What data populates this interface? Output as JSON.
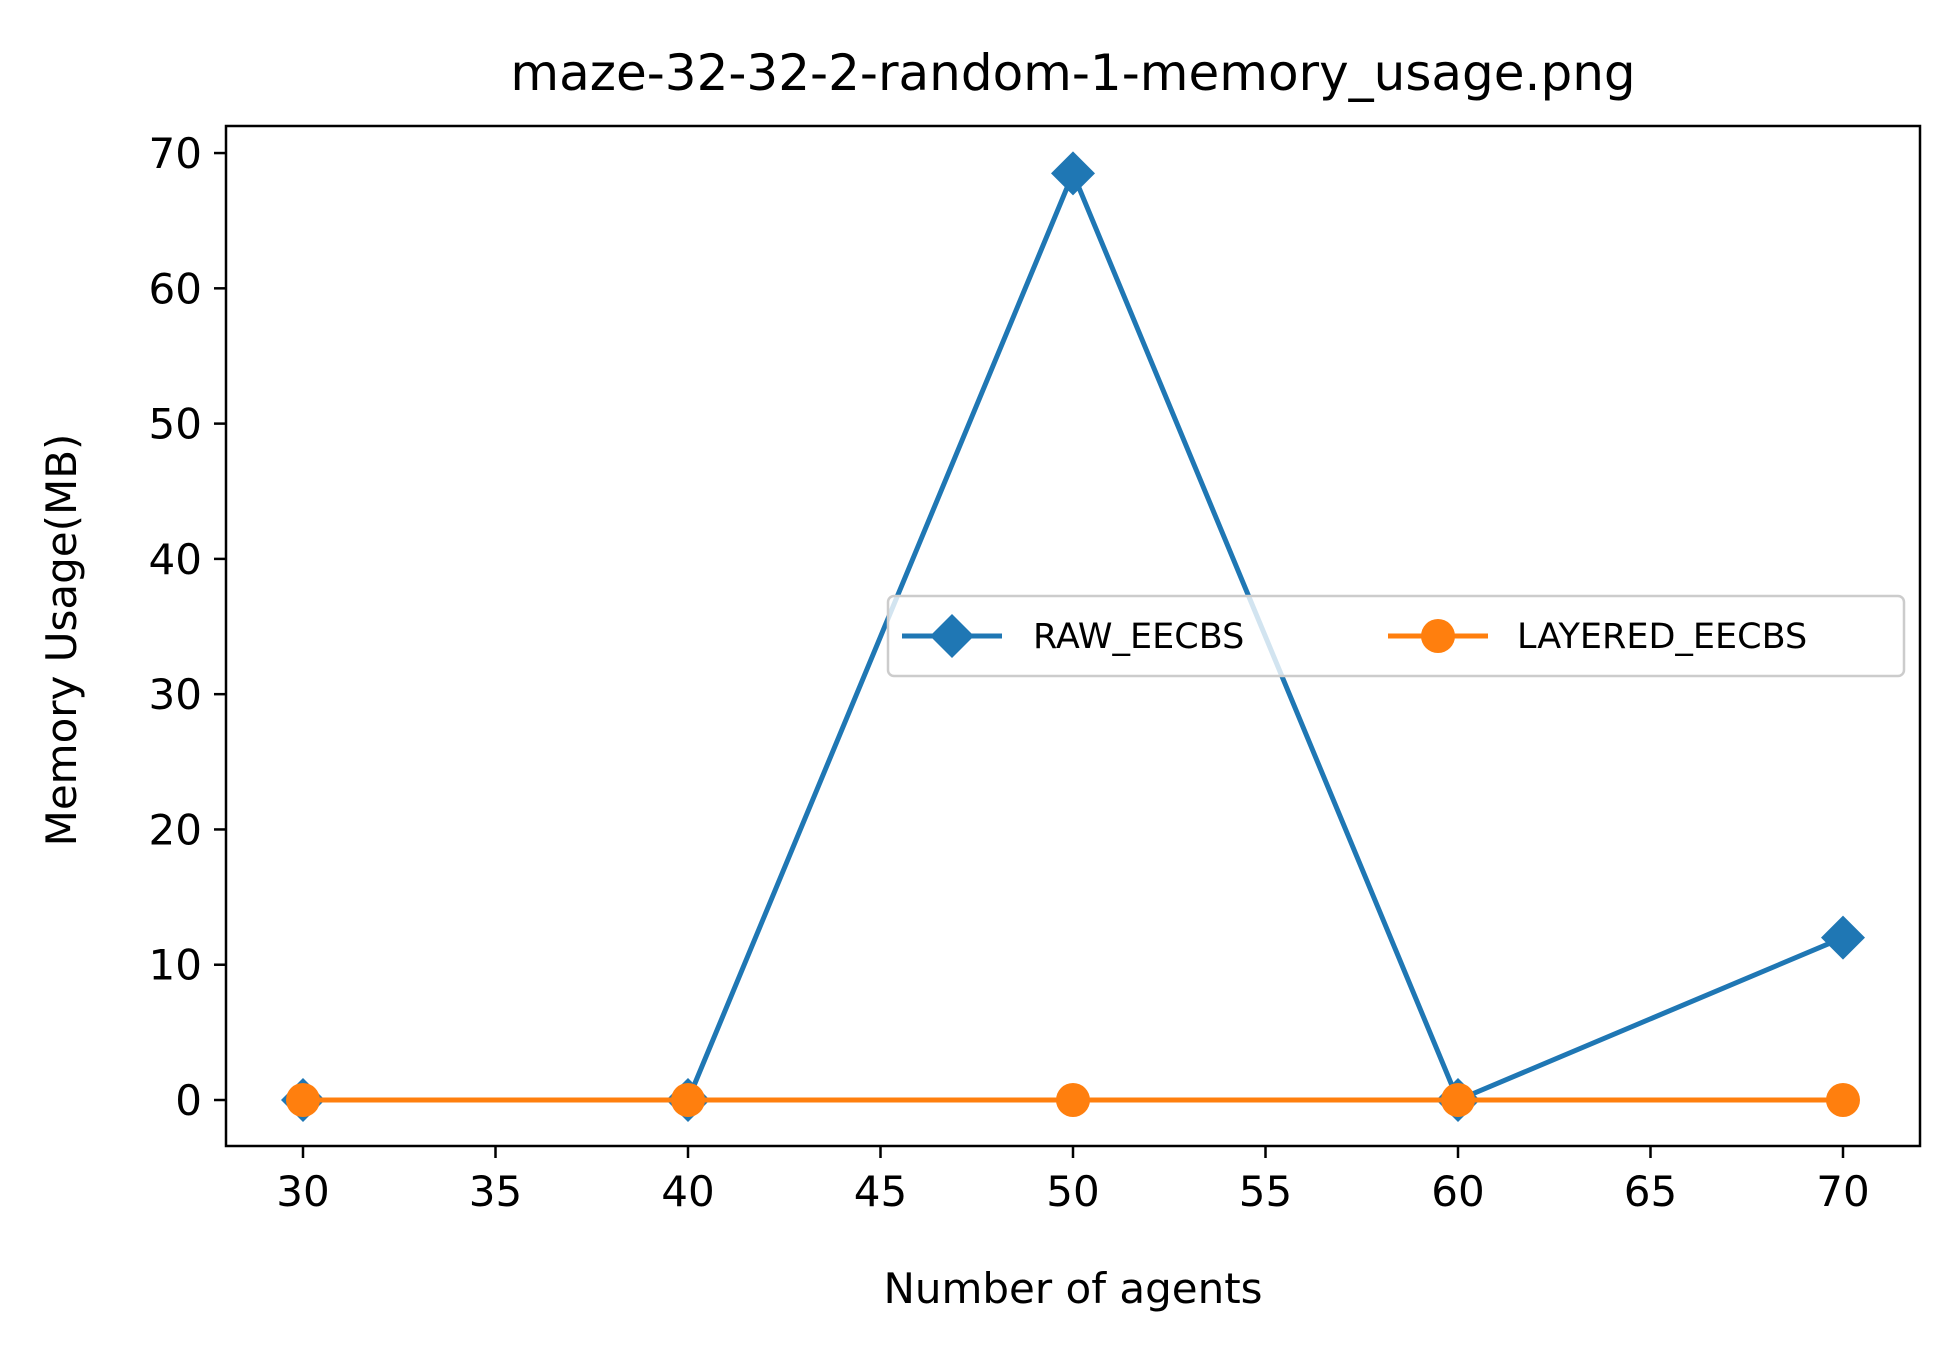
{
  "chart_data": {
    "type": "line",
    "title": "maze-32-32-2-random-1-memory_usage.png",
    "xlabel": "Number of agents",
    "ylabel": "Memory Usage(MB)",
    "x": [
      30,
      40,
      50,
      60,
      70
    ],
    "xlim": [
      28,
      72
    ],
    "ylim": [
      -3.4,
      72
    ],
    "xticks": [
      30,
      35,
      40,
      45,
      50,
      55,
      60,
      65,
      70
    ],
    "yticks": [
      0,
      10,
      20,
      30,
      40,
      50,
      60,
      70
    ],
    "grid": false,
    "legend": {
      "placement": "center-right",
      "columns": 2
    },
    "series": [
      {
        "name": "RAW_EECBS",
        "values": [
          0.0,
          0.0,
          68.5,
          0.0,
          12.0
        ],
        "color": "#1f77b4",
        "marker": "diamond"
      },
      {
        "name": "LAYERED_EECBS",
        "values": [
          0.0,
          0.0,
          0.0,
          0.0,
          0.0
        ],
        "color": "#ff7f0e",
        "marker": "circle"
      }
    ]
  }
}
